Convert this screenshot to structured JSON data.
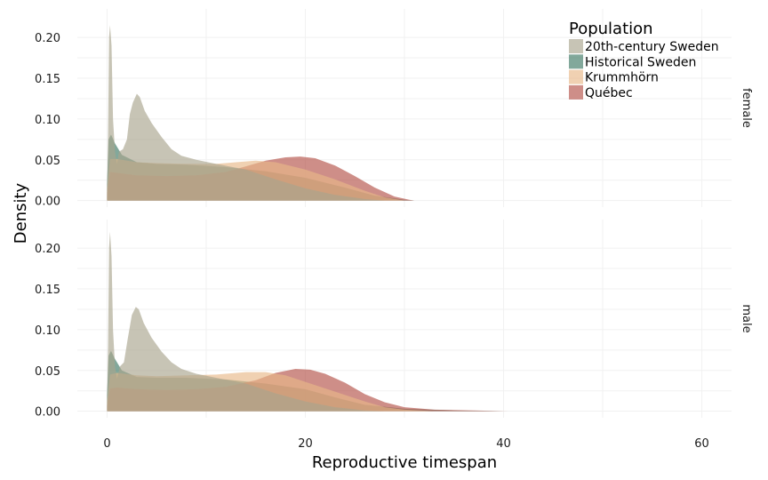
{
  "chart_data": {
    "type": "area",
    "subtype": "density",
    "xlabel": "Reproductive timespan",
    "ylabel": "Density",
    "xlim": [
      -3,
      63
    ],
    "ylim": [
      -0.008,
      0.235
    ],
    "x_ticks": [
      0,
      20,
      40,
      60
    ],
    "x_tick_labels": [
      "0",
      "20",
      "40",
      "60"
    ],
    "y_ticks": [
      0,
      0.05,
      0.1,
      0.15,
      0.2
    ],
    "y_tick_labels": [
      "0.00",
      "0.05",
      "0.10",
      "0.15",
      "0.20"
    ],
    "grid": true,
    "legend": {
      "title": "Population",
      "position": "top-right",
      "entries": [
        "20th-century Sweden",
        "Historical Sweden",
        "Krummhörn",
        "Québec"
      ]
    },
    "colors": {
      "20th-century Sweden": "#a9a48e",
      "Historical Sweden": "#3f7a66",
      "Krummhörn": "#e8b988",
      "Québec": "#b35148"
    },
    "fill_opacity": 0.65,
    "facets": [
      {
        "label": "female",
        "series": [
          {
            "name": "Historical Sweden",
            "points": [
              [
                0,
                0.02
              ],
              [
                0.15,
                0.075
              ],
              [
                0.4,
                0.081
              ],
              [
                0.8,
                0.07
              ],
              [
                1.5,
                0.056
              ],
              [
                3,
                0.047
              ],
              [
                5,
                0.045
              ],
              [
                8,
                0.044
              ],
              [
                12,
                0.041
              ],
              [
                16,
                0.036
              ],
              [
                20,
                0.028
              ],
              [
                24,
                0.016
              ],
              [
                27,
                0.006
              ],
              [
                30,
                0.001
              ],
              [
                31,
                0
              ]
            ]
          },
          {
            "name": "Québec",
            "points": [
              [
                0,
                0.01
              ],
              [
                0.3,
                0.035
              ],
              [
                1,
                0.034
              ],
              [
                3,
                0.031
              ],
              [
                6,
                0.03
              ],
              [
                9,
                0.031
              ],
              [
                12,
                0.035
              ],
              [
                14,
                0.042
              ],
              [
                16,
                0.049
              ],
              [
                18,
                0.053
              ],
              [
                19.5,
                0.054
              ],
              [
                21,
                0.052
              ],
              [
                23,
                0.043
              ],
              [
                25,
                0.03
              ],
              [
                27,
                0.016
              ],
              [
                29,
                0.005
              ],
              [
                30.5,
                0.001
              ],
              [
                31,
                0
              ]
            ]
          },
          {
            "name": "Krummhörn",
            "points": [
              [
                0,
                0.015
              ],
              [
                0.3,
                0.051
              ],
              [
                1,
                0.051
              ],
              [
                3,
                0.047
              ],
              [
                5,
                0.046
              ],
              [
                8,
                0.045
              ],
              [
                11,
                0.045
              ],
              [
                13,
                0.047
              ],
              [
                15,
                0.049
              ],
              [
                17,
                0.047
              ],
              [
                20,
                0.038
              ],
              [
                23,
                0.026
              ],
              [
                26,
                0.012
              ],
              [
                28,
                0.004
              ],
              [
                30,
                0
              ]
            ]
          },
          {
            "name": "20th-century Sweden",
            "points": [
              [
                0,
                0.005
              ],
              [
                0.1,
                0.08
              ],
              [
                0.2,
                0.2
              ],
              [
                0.3,
                0.215
              ],
              [
                0.45,
                0.19
              ],
              [
                0.6,
                0.1
              ],
              [
                0.8,
                0.06
              ],
              [
                1.0,
                0.045
              ],
              [
                1.2,
                0.06
              ],
              [
                1.6,
                0.063
              ],
              [
                2,
                0.075
              ],
              [
                2.3,
                0.106
              ],
              [
                2.6,
                0.12
              ],
              [
                3,
                0.131
              ],
              [
                3.3,
                0.127
              ],
              [
                3.8,
                0.11
              ],
              [
                4.5,
                0.095
              ],
              [
                5.5,
                0.078
              ],
              [
                6.5,
                0.063
              ],
              [
                7.5,
                0.055
              ],
              [
                9,
                0.05
              ],
              [
                11,
                0.045
              ],
              [
                14,
                0.038
              ],
              [
                17,
                0.026
              ],
              [
                20,
                0.015
              ],
              [
                23,
                0.007
              ],
              [
                26,
                0.002
              ],
              [
                28,
                0
              ]
            ]
          }
        ]
      },
      {
        "label": "male",
        "series": [
          {
            "name": "Historical Sweden",
            "points": [
              [
                0,
                0.02
              ],
              [
                0.15,
                0.068
              ],
              [
                0.4,
                0.074
              ],
              [
                0.8,
                0.064
              ],
              [
                1.5,
                0.05
              ],
              [
                3,
                0.042
              ],
              [
                5,
                0.041
              ],
              [
                8,
                0.041
              ],
              [
                12,
                0.039
              ],
              [
                16,
                0.034
              ],
              [
                20,
                0.027
              ],
              [
                23,
                0.017
              ],
              [
                26,
                0.008
              ],
              [
                30,
                0.003
              ],
              [
                35,
                0.001
              ],
              [
                40,
                0
              ]
            ]
          },
          {
            "name": "Québec",
            "points": [
              [
                0,
                0.008
              ],
              [
                0.3,
                0.028
              ],
              [
                1,
                0.029
              ],
              [
                3,
                0.027
              ],
              [
                6,
                0.026
              ],
              [
                9,
                0.027
              ],
              [
                12,
                0.03
              ],
              [
                15,
                0.038
              ],
              [
                17,
                0.047
              ],
              [
                19,
                0.052
              ],
              [
                20.5,
                0.051
              ],
              [
                22,
                0.046
              ],
              [
                24,
                0.035
              ],
              [
                26,
                0.021
              ],
              [
                28,
                0.011
              ],
              [
                30,
                0.005
              ],
              [
                33,
                0.002
              ],
              [
                37,
                0.001
              ],
              [
                40.5,
                0
              ]
            ]
          },
          {
            "name": "Krummhörn",
            "points": [
              [
                0,
                0.012
              ],
              [
                0.3,
                0.045
              ],
              [
                1,
                0.047
              ],
              [
                3,
                0.044
              ],
              [
                5,
                0.043
              ],
              [
                8,
                0.044
              ],
              [
                11,
                0.045
              ],
              [
                14,
                0.048
              ],
              [
                16,
                0.048
              ],
              [
                18,
                0.044
              ],
              [
                20,
                0.036
              ],
              [
                23,
                0.024
              ],
              [
                26,
                0.012
              ],
              [
                28,
                0.005
              ],
              [
                30,
                0.002
              ],
              [
                33,
                0
              ]
            ]
          },
          {
            "name": "20th-century Sweden",
            "points": [
              [
                0,
                0.005
              ],
              [
                0.1,
                0.08
              ],
              [
                0.2,
                0.2
              ],
              [
                0.3,
                0.22
              ],
              [
                0.45,
                0.19
              ],
              [
                0.6,
                0.1
              ],
              [
                0.8,
                0.055
              ],
              [
                1.0,
                0.04
              ],
              [
                1.3,
                0.055
              ],
              [
                1.7,
                0.06
              ],
              [
                2.1,
                0.09
              ],
              [
                2.5,
                0.118
              ],
              [
                2.9,
                0.128
              ],
              [
                3.2,
                0.125
              ],
              [
                3.7,
                0.108
              ],
              [
                4.5,
                0.09
              ],
              [
                5.5,
                0.073
              ],
              [
                6.5,
                0.06
              ],
              [
                7.5,
                0.052
              ],
              [
                9,
                0.046
              ],
              [
                11,
                0.041
              ],
              [
                14,
                0.034
              ],
              [
                17,
                0.022
              ],
              [
                20,
                0.012
              ],
              [
                23,
                0.005
              ],
              [
                26,
                0.001
              ],
              [
                28,
                0
              ]
            ]
          }
        ]
      }
    ]
  }
}
